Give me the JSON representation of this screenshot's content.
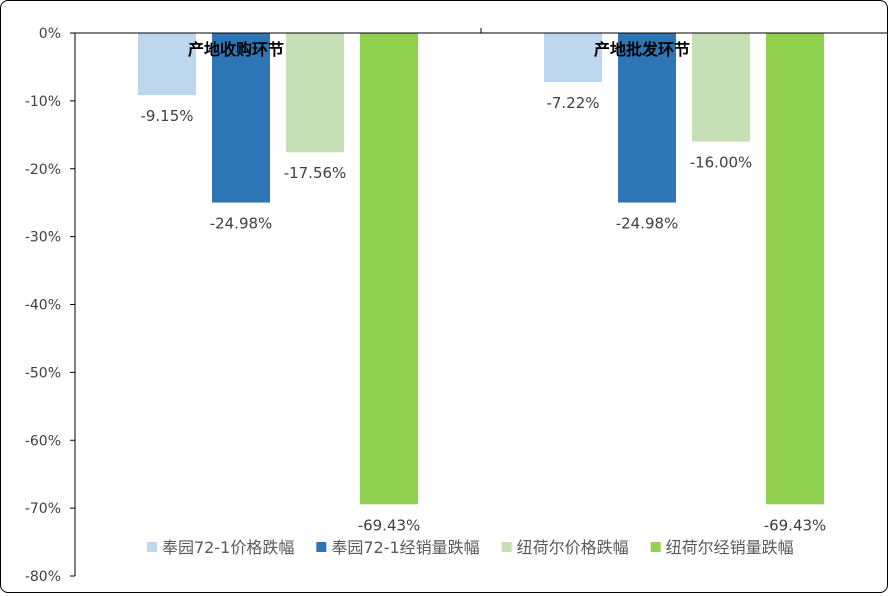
{
  "chart_data": {
    "type": "bar",
    "categories": [
      "产地收购环节",
      "产地批发环节"
    ],
    "series": [
      {
        "name": "奉园72-1价格跌幅",
        "color": "#bdd7ee",
        "values": [
          -9.15,
          -7.22
        ],
        "labels": [
          "-9.15%",
          "-7.22%"
        ]
      },
      {
        "name": "奉园72-1经销量跌幅",
        "color": "#2e75b6",
        "values": [
          -24.98,
          -24.98
        ],
        "labels": [
          "-24.98%",
          "-24.98%"
        ]
      },
      {
        "name": "纽荷尔价格跌幅",
        "color": "#c5e0b4",
        "values": [
          -17.56,
          -16.0
        ],
        "labels": [
          "-17.56%",
          "-16.00%"
        ]
      },
      {
        "name": "纽荷尔经销量跌幅",
        "color": "#92d050",
        "values": [
          -69.43,
          -69.43
        ],
        "labels": [
          "-69.43%",
          "-69.43%"
        ]
      }
    ],
    "ylim": [
      -80,
      0
    ],
    "yticks": [
      "0%",
      "-10%",
      "-20%",
      "-30%",
      "-40%",
      "-50%",
      "-60%",
      "-70%",
      "-80%"
    ],
    "grid": false,
    "legend": "bottom-right"
  }
}
